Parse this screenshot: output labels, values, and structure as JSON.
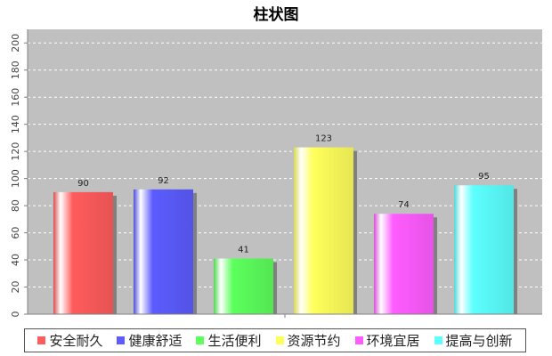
{
  "chart_data": {
    "type": "bar",
    "title": "柱状图",
    "categories": [
      "安全耐久",
      "健康舒适",
      "生活便利",
      "资源节约",
      "环境宜居",
      "提高与创新"
    ],
    "values": [
      90,
      92,
      41,
      123,
      74,
      95
    ],
    "colors": [
      "#ff5c5c",
      "#5c5cff",
      "#5cff5c",
      "#ffff5c",
      "#ff5cff",
      "#5cffff"
    ],
    "ylim": [
      0,
      210
    ],
    "yticks": [
      "0",
      "20",
      "40",
      "60",
      "80",
      "100",
      "120",
      "140",
      "160",
      "180",
      "200"
    ],
    "grid": true,
    "legend_position": "bottom"
  }
}
